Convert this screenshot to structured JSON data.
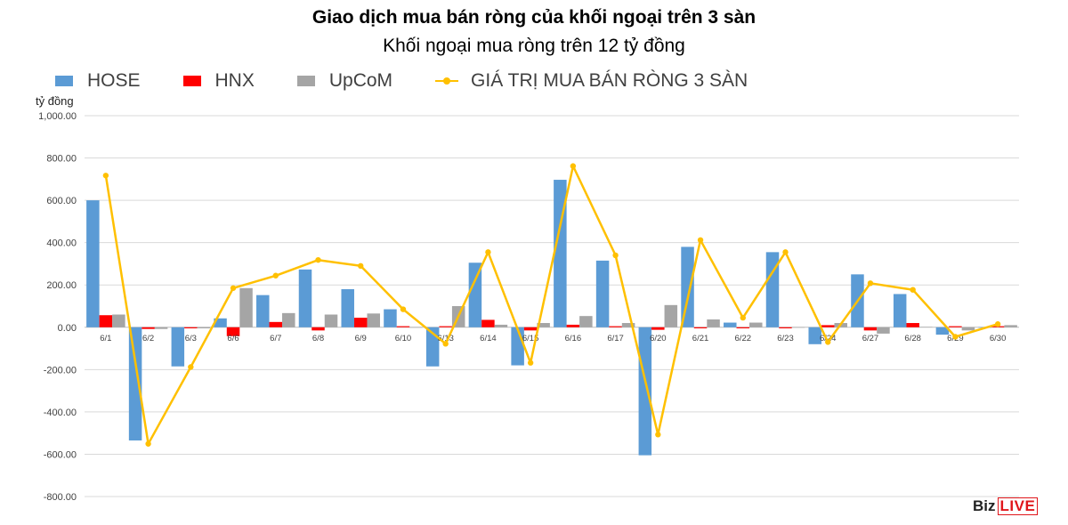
{
  "chart_data": {
    "type": "bar",
    "title": "Giao dịch mua bán ròng của khối ngoại trên 3 sàn",
    "subtitle": "Khối ngoại mua ròng trên 12 tỷ đồng",
    "ylabel": "tỷ đồng",
    "xlabel": "",
    "ylim": [
      -800,
      1000
    ],
    "yticks": [
      1000,
      800,
      600,
      400,
      200,
      0,
      -200,
      -400,
      -600,
      -800
    ],
    "ytick_labels": [
      "1,000.00",
      "800.00",
      "600.00",
      "400.00",
      "200.00",
      "0.00",
      "-200.00",
      "-400.00",
      "-600.00",
      "-800.00"
    ],
    "grid": true,
    "legend_position": "top-left",
    "categories": [
      "6/1",
      "6/2",
      "6/3",
      "6/6",
      "6/7",
      "6/8",
      "6/9",
      "6/10",
      "6/13",
      "6/14",
      "6/15",
      "6/16",
      "6/17",
      "6/20",
      "6/21",
      "6/22",
      "6/23",
      "6/24",
      "6/27",
      "6/28",
      "6/29",
      "6/30"
    ],
    "series": [
      {
        "name": "HOSE",
        "kind": "bar",
        "color": "#5b9bd5",
        "values": [
          600,
          -535,
          -185,
          42,
          152,
          273,
          180,
          85,
          -185,
          305,
          -180,
          697,
          315,
          -605,
          380,
          22,
          355,
          -80,
          250,
          157,
          -35,
          0
        ]
      },
      {
        "name": "HNX",
        "kind": "bar",
        "color": "#ff0000",
        "values": [
          57,
          -8,
          -5,
          -42,
          25,
          -15,
          45,
          5,
          5,
          35,
          -15,
          12,
          5,
          -12,
          -5,
          -5,
          -5,
          10,
          -15,
          20,
          5,
          5
        ]
      },
      {
        "name": "UpCoM",
        "kind": "bar",
        "color": "#a5a5a5",
        "values": [
          60,
          -8,
          -5,
          185,
          67,
          60,
          65,
          0,
          100,
          12,
          20,
          53,
          20,
          105,
          37,
          22,
          0,
          20,
          -30,
          2,
          -15,
          10
        ]
      },
      {
        "name": "GIÁ TRỊ MUA BÁN RÒNG 3 SÀN",
        "kind": "line",
        "color": "#ffc000",
        "values": [
          717,
          -551,
          -188,
          185,
          244,
          318,
          290,
          85,
          -78,
          355,
          -168,
          762,
          340,
          -507,
          412,
          45,
          355,
          -70,
          208,
          177,
          -45,
          15
        ]
      }
    ]
  },
  "logo": {
    "part1": "Biz",
    "part2": "LIVE"
  }
}
